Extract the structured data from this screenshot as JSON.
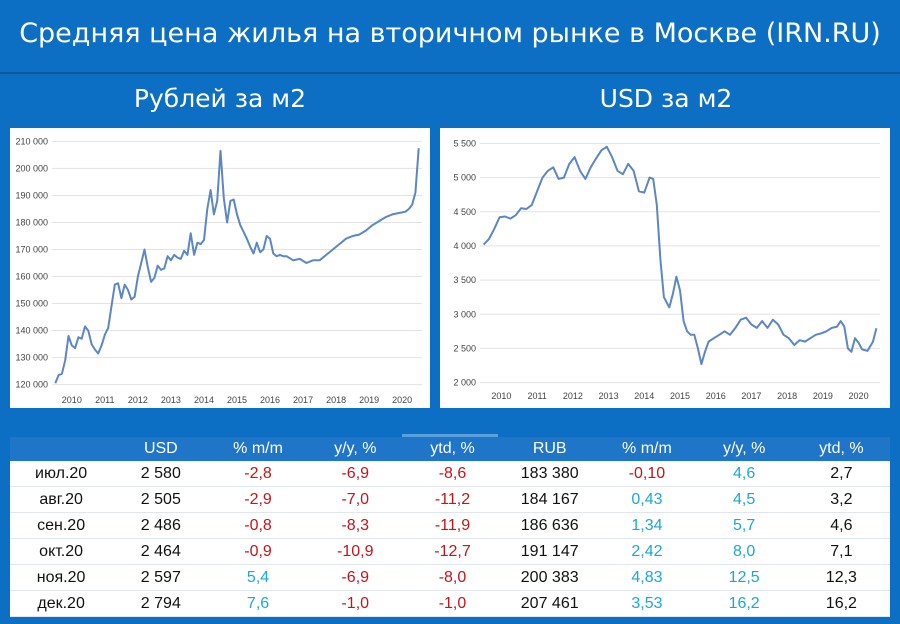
{
  "title": "Средняя цена жилья на вторичном рынке в Москве (IRN.RU)",
  "chart_data": [
    {
      "type": "line",
      "title": "Рублей за м2",
      "x_ticks": [
        "2010",
        "2011",
        "2012",
        "2013",
        "2014",
        "2015",
        "2016",
        "2017",
        "2018",
        "2019",
        "2020"
      ],
      "xlim": [
        2009.9,
        2021.1
      ],
      "y_ticks": [
        "120 000",
        "130 000",
        "140 000",
        "150 000",
        "160 000",
        "170 000",
        "180 000",
        "190 000",
        "200 000",
        "210 000"
      ],
      "ylim": [
        118000,
        212000
      ],
      "color": "#5b87c5",
      "x": [
        2010.0,
        2010.1,
        2010.2,
        2010.3,
        2010.4,
        2010.5,
        2010.6,
        2010.7,
        2010.8,
        2010.9,
        2011.0,
        2011.1,
        2011.2,
        2011.3,
        2011.4,
        2011.5,
        2011.6,
        2011.7,
        2011.8,
        2011.9,
        2012.0,
        2012.1,
        2012.2,
        2012.3,
        2012.4,
        2012.5,
        2012.6,
        2012.7,
        2012.8,
        2012.9,
        2013.0,
        2013.1,
        2013.2,
        2013.3,
        2013.4,
        2013.5,
        2013.6,
        2013.7,
        2013.8,
        2013.9,
        2014.0,
        2014.1,
        2014.2,
        2014.3,
        2014.4,
        2014.5,
        2014.6,
        2014.7,
        2014.8,
        2014.9,
        2015.0,
        2015.1,
        2015.2,
        2015.3,
        2015.4,
        2015.5,
        2015.6,
        2015.7,
        2015.8,
        2015.9,
        2016.0,
        2016.1,
        2016.2,
        2016.3,
        2016.4,
        2016.5,
        2016.6,
        2016.7,
        2016.8,
        2016.9,
        2017.0,
        2017.2,
        2017.4,
        2017.6,
        2017.8,
        2018.0,
        2018.2,
        2018.4,
        2018.6,
        2018.8,
        2019.0,
        2019.2,
        2019.4,
        2019.6,
        2019.8,
        2020.0,
        2020.2,
        2020.4,
        2020.6,
        2020.7,
        2020.8,
        2020.9,
        2021.0
      ],
      "values": [
        120500,
        123500,
        124000,
        129000,
        138000,
        134500,
        133500,
        137500,
        137000,
        141500,
        140000,
        135000,
        133000,
        131500,
        134500,
        138500,
        141000,
        149000,
        157000,
        157500,
        152000,
        157000,
        155000,
        151500,
        152500,
        160000,
        165000,
        170000,
        163500,
        158000,
        159500,
        164000,
        162500,
        163000,
        167500,
        166000,
        168000,
        167000,
        166500,
        169500,
        168000,
        176000,
        168000,
        172500,
        172000,
        173500,
        185000,
        192000,
        183000,
        188000,
        206500,
        189000,
        180000,
        188000,
        188500,
        183000,
        179000,
        176500,
        174000,
        171000,
        168500,
        172500,
        169000,
        170000,
        175000,
        174000,
        168500,
        167500,
        168000,
        167500,
        167500,
        166000,
        166500,
        165000,
        166000,
        166000,
        168000,
        170000,
        172000,
        174000,
        175000,
        175500,
        177000,
        179000,
        180500,
        182000,
        183000,
        183500,
        184000,
        185000,
        186500,
        191000,
        207500
      ]
    },
    {
      "type": "line",
      "title": "USD за м2",
      "x_ticks": [
        "2010",
        "2011",
        "2012",
        "2013",
        "2014",
        "2015",
        "2016",
        "2017",
        "2018",
        "2019",
        "2020"
      ],
      "xlim": [
        2009.9,
        2021.1
      ],
      "y_ticks": [
        "2 000",
        "2 500",
        "3 000",
        "3 500",
        "4 000",
        "4 500",
        "5 000",
        "5 500"
      ],
      "ylim": [
        1950,
        5550
      ],
      "color": "#5b87c5",
      "x": [
        2010.0,
        2010.15,
        2010.3,
        2010.45,
        2010.6,
        2010.75,
        2010.9,
        2011.05,
        2011.2,
        2011.35,
        2011.5,
        2011.65,
        2011.8,
        2011.95,
        2012.1,
        2012.25,
        2012.4,
        2012.55,
        2012.7,
        2012.85,
        2013.0,
        2013.15,
        2013.3,
        2013.45,
        2013.6,
        2013.75,
        2013.9,
        2014.05,
        2014.2,
        2014.35,
        2014.5,
        2014.65,
        2014.75,
        2014.85,
        2014.95,
        2015.05,
        2015.2,
        2015.3,
        2015.4,
        2015.5,
        2015.6,
        2015.7,
        2015.8,
        2015.9,
        2016.0,
        2016.1,
        2016.2,
        2016.3,
        2016.45,
        2016.6,
        2016.75,
        2016.9,
        2017.05,
        2017.2,
        2017.35,
        2017.5,
        2017.65,
        2017.8,
        2017.95,
        2018.1,
        2018.25,
        2018.4,
        2018.55,
        2018.7,
        2018.85,
        2019.0,
        2019.15,
        2019.3,
        2019.45,
        2019.6,
        2019.75,
        2019.9,
        2020.0,
        2020.1,
        2020.2,
        2020.3,
        2020.4,
        2020.5,
        2020.6,
        2020.75,
        2020.9,
        2021.0
      ],
      "values": [
        4020,
        4100,
        4250,
        4420,
        4430,
        4400,
        4450,
        4550,
        4540,
        4600,
        4800,
        5000,
        5100,
        5150,
        4980,
        5000,
        5200,
        5300,
        5100,
        4980,
        5150,
        5280,
        5400,
        5450,
        5300,
        5100,
        5050,
        5200,
        5100,
        4800,
        4780,
        5000,
        4980,
        4600,
        3800,
        3250,
        3100,
        3300,
        3550,
        3350,
        2900,
        2750,
        2700,
        2700,
        2500,
        2270,
        2450,
        2600,
        2650,
        2700,
        2750,
        2700,
        2800,
        2920,
        2950,
        2850,
        2800,
        2900,
        2800,
        2920,
        2850,
        2700,
        2650,
        2550,
        2620,
        2600,
        2650,
        2700,
        2720,
        2750,
        2800,
        2820,
        2900,
        2820,
        2500,
        2450,
        2650,
        2580,
        2486,
        2464,
        2597,
        2794
      ]
    }
  ],
  "table": {
    "headers": [
      "",
      "USD",
      "% m/m",
      "y/y, %",
      "ytd, %",
      "RUB",
      "% m/m",
      "y/y, %",
      "ytd, %"
    ],
    "rows": [
      [
        "июл.20",
        "2 580",
        "-2,8",
        "-6,9",
        "-8,6",
        "183 380",
        "-0,10",
        "4,6",
        "2,7"
      ],
      [
        "авг.20",
        "2 505",
        "-2,9",
        "-7,0",
        "-11,2",
        "184 167",
        "0,43",
        "4,5",
        "3,2"
      ],
      [
        "сен.20",
        "2 486",
        "-0,8",
        "-8,3",
        "-11,9",
        "186 636",
        "1,34",
        "5,7",
        "4,6"
      ],
      [
        "окт.20",
        "2 464",
        "-0,9",
        "-10,9",
        "-12,7",
        "191 147",
        "2,42",
        "8,0",
        "7,1"
      ],
      [
        "ноя.20",
        "2 597",
        "5,4",
        "-6,9",
        "-8,0",
        "200 383",
        "4,83",
        "12,5",
        "12,3"
      ],
      [
        "дек.20",
        "2 794",
        "7,6",
        "-1,0",
        "-1,0",
        "207 461",
        "3,53",
        "16,2",
        "16,2"
      ]
    ],
    "colors": {
      "negative": "#c0151b",
      "positive": "#1aa7d8",
      "neutral": "#111111"
    }
  }
}
